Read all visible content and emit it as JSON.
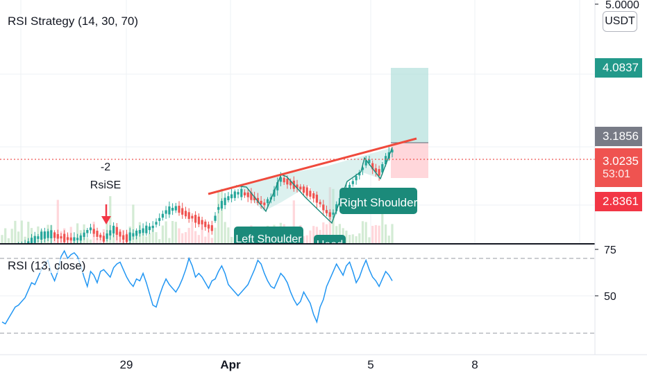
{
  "main_chart": {
    "title": "RSI Strategy (14, 30, 70)",
    "currency_button": "USDT",
    "top_axis_label": "5.0000",
    "price_labels": {
      "take_profit": "4.0837",
      "entry": "3.1856",
      "current": "3.0235",
      "countdown": "53:01",
      "stop_loss": "2.8361"
    },
    "signal_label_value": "-2",
    "signal_label_name": "RsiSE",
    "pattern_labels": {
      "left_shoulder": "Left Shoulder",
      "head": "Head",
      "right_shoulder": "Right Shoulder"
    }
  },
  "rsi_panel": {
    "title": "RSI (13, close)",
    "axis_labels": [
      "75",
      "50"
    ]
  },
  "time_axis": {
    "labels": [
      "29",
      "Apr",
      "5",
      "8"
    ]
  },
  "colors": {
    "up": "#26a69a",
    "down": "#ef5350",
    "rsi_line": "#2196f3",
    "trendline": "#ef4a3c",
    "tp_zone": "#b2dfdb",
    "sl_zone": "#ffcdd2",
    "entry_tag": "#787b86",
    "pattern_label": "#1b8a7a"
  },
  "chart_data": {
    "type": "candlestick",
    "series": [
      {
        "name": "RSI (13, close)",
        "type": "line",
        "values": [
          36,
          35,
          38,
          41,
          44,
          45,
          47,
          49,
          53,
          57,
          56,
          60,
          64,
          67,
          69,
          62,
          58,
          63,
          71,
          74,
          70,
          72,
          73,
          71,
          66,
          60,
          55,
          63,
          61,
          57,
          63,
          64,
          62,
          60,
          65,
          67,
          68,
          64,
          60,
          57,
          55,
          59,
          58,
          62,
          57,
          51,
          45,
          44,
          50,
          55,
          59,
          56,
          54,
          52,
          55,
          59,
          64,
          70,
          66,
          60,
          62,
          60,
          57,
          54,
          58,
          59,
          63,
          66,
          62,
          56,
          54,
          52,
          50,
          52,
          54,
          56,
          60,
          64,
          69,
          67,
          62,
          58,
          55,
          54,
          58,
          62,
          60,
          57,
          52,
          48,
          45,
          47,
          52,
          49,
          46,
          40,
          36,
          44,
          48,
          55,
          59,
          63,
          67,
          64,
          61,
          66,
          68,
          63,
          57,
          60,
          65,
          69,
          64,
          60,
          58,
          55,
          59,
          63,
          61,
          58
        ]
      }
    ],
    "ylim": [
      3.0,
      5.0
    ],
    "rsi_ylim": [
      30,
      80
    ],
    "rsi_levels": [
      70,
      30
    ],
    "x_tick_labels": [
      "29",
      "Apr",
      "5",
      "8"
    ],
    "grid": true
  }
}
